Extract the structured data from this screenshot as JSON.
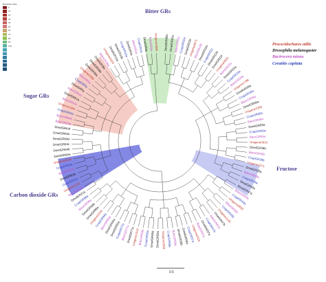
{
  "bootstrap_legend": {
    "title": "Bootstrap value",
    "levels": [
      {
        "label": "0",
        "color": "#7b1a1a"
      },
      {
        "label": "10",
        "color": "#8e2222"
      },
      {
        "label": "20",
        "color": "#a33030"
      },
      {
        "label": "30",
        "color": "#b54343"
      },
      {
        "label": "40",
        "color": "#c45c5c"
      },
      {
        "label": "50",
        "color": "#d07a7a"
      },
      {
        "label": "60",
        "color": "#c9a16a"
      },
      {
        "label": "70",
        "color": "#aebc5a"
      },
      {
        "label": "80",
        "color": "#8fc454"
      },
      {
        "label": "90",
        "color": "#6fba7a"
      },
      {
        "label": "100",
        "color": "#5bb3a6"
      },
      {
        "label": "",
        "color": "#49a7b9"
      },
      {
        "label": "",
        "color": "#3f93b0"
      },
      {
        "label": "",
        "color": "#347ea3"
      },
      {
        "label": "",
        "color": "#2a6a94"
      },
      {
        "label": "",
        "color": "#245c85"
      },
      {
        "label": "",
        "color": "#1e4f78"
      }
    ]
  },
  "clade_labels": {
    "bitter": "Bitter GRs",
    "sugar": "Sugar GRs",
    "fructose": "Fructose",
    "co2": "Carbon dioxide GRs"
  },
  "species_legend": [
    {
      "name": "Procecidochares utilis",
      "color": "#c0392b"
    },
    {
      "name": "Drosophila melanogaster",
      "color": "#111111"
    },
    {
      "name": "Bactrocera minax",
      "color": "#c04fc0"
    },
    {
      "name": "Ceratitis capitata",
      "color": "#2b3fb8"
    }
  ],
  "scale_label": "0.5",
  "clade_colors": {
    "bitter": "#bfe6b8",
    "sugar": "#f4c0b8",
    "fructose": "#b9bdf0",
    "co2": "#6f73e0"
  },
  "leaves": [
    {
      "name": "DmelGR68a",
      "sp": 1
    },
    {
      "name": "DmelGR32a",
      "sp": 1
    },
    {
      "name": "BdorGR32a",
      "sp": 2
    },
    {
      "name": "CcapGR32a",
      "sp": 3
    },
    {
      "name": "DmelGR22e",
      "sp": 1
    },
    {
      "name": "Unigene0871",
      "sp": 0
    },
    {
      "name": "BdorGR22b",
      "sp": 2
    },
    {
      "name": "DmelGR22a",
      "sp": 1
    },
    {
      "name": "CcapGR22c",
      "sp": 3
    },
    {
      "name": "DmelGR22d",
      "sp": 1
    },
    {
      "name": "DmelGR22f",
      "sp": 1
    },
    {
      "name": "Unigene0935",
      "sp": 0
    },
    {
      "name": "BdorGR22a",
      "sp": 2
    },
    {
      "name": "DmelGR33a",
      "sp": 1
    },
    {
      "name": "CcapGR33a",
      "sp": 3
    },
    {
      "name": "BdorGR33a",
      "sp": 2
    },
    {
      "name": "Unigene1788",
      "sp": 0
    },
    {
      "name": "DmelGR39a",
      "sp": 1
    },
    {
      "name": "CcapGR39a",
      "sp": 3
    },
    {
      "name": "BdorGR39a",
      "sp": 2
    },
    {
      "name": "DmelGR66a",
      "sp": 1
    },
    {
      "name": "Unigene2266",
      "sp": 0
    },
    {
      "name": "CcapGR66a",
      "sp": 3
    },
    {
      "name": "BdorGR66a",
      "sp": 2
    },
    {
      "name": "DmelGR93a",
      "sp": 1
    },
    {
      "name": "CcapGR93a",
      "sp": 3
    },
    {
      "name": "BdorGR93a",
      "sp": 2
    },
    {
      "name": "Unigene0916",
      "sp": 0
    },
    {
      "name": "DmelGR28b",
      "sp": 1
    },
    {
      "name": "BdorGR28b",
      "sp": 2
    },
    {
      "name": "CcapGR28b",
      "sp": 3
    },
    {
      "name": "Unigene1071",
      "sp": 0
    },
    {
      "name": "DmelGR28a",
      "sp": 1
    },
    {
      "name": "BdorGR28a",
      "sp": 2
    },
    {
      "name": "CcapGR28a",
      "sp": 3
    },
    {
      "name": "DmelGR43a",
      "sp": 1
    },
    {
      "name": "DmelGR47a",
      "sp": 1
    },
    {
      "name": "BdorGR43a",
      "sp": 2
    },
    {
      "name": "CcapGR43a",
      "sp": 3
    },
    {
      "name": "Unigene0859",
      "sp": 0
    },
    {
      "name": "BdorGR43b",
      "sp": 2
    },
    {
      "name": "CcapGR43b",
      "sp": 3
    },
    {
      "name": "Unigene1145",
      "sp": 0
    },
    {
      "name": "DmelGR47b",
      "sp": 1
    },
    {
      "name": "BdorGR47b",
      "sp": 2
    },
    {
      "name": "CcapGR47b",
      "sp": 3
    },
    {
      "name": "DmelGR57a",
      "sp": 1
    },
    {
      "name": "BdorGR57a",
      "sp": 2
    },
    {
      "name": "Unigene0318",
      "sp": 0
    },
    {
      "name": "CcapGR57a",
      "sp": 3
    },
    {
      "name": "DmelGR58a",
      "sp": 1
    },
    {
      "name": "DmelGR58b",
      "sp": 1
    },
    {
      "name": "BdorGR58a",
      "sp": 2
    },
    {
      "name": "CcapGR58a",
      "sp": 3
    },
    {
      "name": "Unigene2058",
      "sp": 0
    },
    {
      "name": "DmelGR59a",
      "sp": 1
    },
    {
      "name": "DmelGR59d",
      "sp": 1
    },
    {
      "name": "CcapGR59a",
      "sp": 3
    },
    {
      "name": "BdorGR59a",
      "sp": 2
    },
    {
      "name": "Unigene1519",
      "sp": 0
    },
    {
      "name": "DmelGR77a",
      "sp": 1
    },
    {
      "name": "BdorGR77a",
      "sp": 2
    },
    {
      "name": "CcapGR77a",
      "sp": 3
    },
    {
      "name": "DmelGR92a",
      "sp": 1
    },
    {
      "name": "DmelGR94a",
      "sp": 1
    },
    {
      "name": "BdorGR94a",
      "sp": 2
    },
    {
      "name": "CcapGR94a",
      "sp": 3
    },
    {
      "name": "Unigene2244",
      "sp": 0
    },
    {
      "name": "DmelGR98a",
      "sp": 1
    },
    {
      "name": "DmelGR98b",
      "sp": 1
    },
    {
      "name": "BdorGR98a",
      "sp": 2
    },
    {
      "name": "CcapGR98a",
      "sp": 3
    },
    {
      "name": "DmelGR21a",
      "sp": 1
    },
    {
      "name": "BdorGR21a",
      "sp": 2
    },
    {
      "name": "Unigene1212",
      "sp": 0
    },
    {
      "name": "CcapGR21a",
      "sp": 3
    },
    {
      "name": "DmelGR63a",
      "sp": 1
    },
    {
      "name": "BdorGR63a",
      "sp": 2
    },
    {
      "name": "CcapGR63a",
      "sp": 3
    },
    {
      "name": "Unigene0638",
      "sp": 0
    },
    {
      "name": "DmelGR64a",
      "sp": 1
    },
    {
      "name": "DmelGR64b",
      "sp": 1
    },
    {
      "name": "DmelGR64c",
      "sp": 1
    },
    {
      "name": "DmelGR64d",
      "sp": 1
    },
    {
      "name": "DmelGR64e",
      "sp": 1
    },
    {
      "name": "DmelGR64f",
      "sp": 1
    },
    {
      "name": "BdorGR64a",
      "sp": 2
    },
    {
      "name": "BdorGR64b",
      "sp": 2
    },
    {
      "name": "CcapGR64a",
      "sp": 3
    },
    {
      "name": "Unigene1964",
      "sp": 0
    },
    {
      "name": "BdorGR64c",
      "sp": 2
    },
    {
      "name": "DmelGR61a",
      "sp": 1
    },
    {
      "name": "BdorGR61a",
      "sp": 2
    },
    {
      "name": "DmelGR5a",
      "sp": 1
    },
    {
      "name": "CcapGR5a",
      "sp": 3
    },
    {
      "name": "BdorGR5a",
      "sp": 2
    },
    {
      "name": "Unigene2405",
      "sp": 0
    },
    {
      "name": "DmelGR36a",
      "sp": 1
    },
    {
      "name": "DmelGR36b",
      "sp": 1
    },
    {
      "name": "DmelGR36c",
      "sp": 1
    },
    {
      "name": "BdorGR36a",
      "sp": 2
    },
    {
      "name": "Unigene0363",
      "sp": 0
    },
    {
      "name": "DmelGR10a",
      "sp": 1
    },
    {
      "name": "DmelGR10b",
      "sp": 1
    },
    {
      "name": "CcapGR10a",
      "sp": 3
    },
    {
      "name": "DmelGR2a",
      "sp": 1
    },
    {
      "name": "BdorGR2a",
      "sp": 2
    },
    {
      "name": "CcapGR2a",
      "sp": 3
    },
    {
      "name": "DmelGR8a",
      "sp": 1
    },
    {
      "name": "BdorGR8a",
      "sp": 2
    },
    {
      "name": "Unigene0089",
      "sp": 0
    }
  ]
}
